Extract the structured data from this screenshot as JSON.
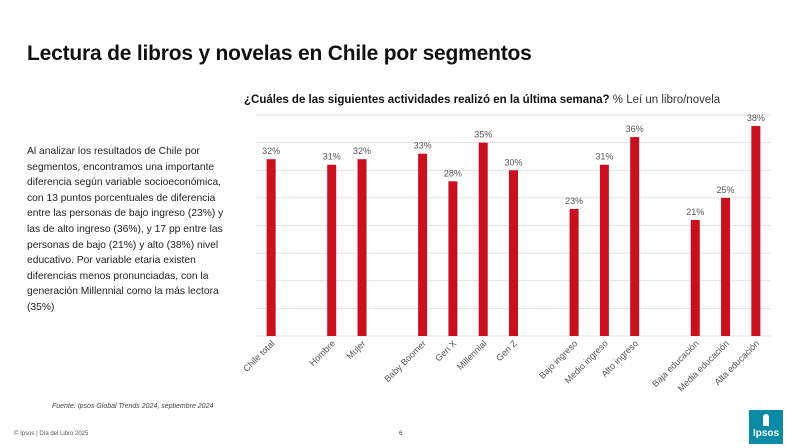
{
  "slide": {
    "title": "Lectura de libros y novelas en Chile por segmentos",
    "body_text": "Al analizar los resultados de Chile por segmentos, encontramos una importante diferencia según variable socioeconómica, con 13 puntos porcentuales de diferencia entre las personas de bajo ingreso (23%) y las de alto ingreso (36%), y 17 pp entre las personas de bajo (21%) y alto (38%) nivel educativo. Por variable etaria existen diferencias menos pronunciadas, con la generación Millennial como la más lectora (35%)",
    "source": "Fuente: Ipsos Global Trends 2024, septiembre 2024",
    "footer": "© Ipsos | Día del Libro 2025",
    "page_number": "6",
    "logo_text": "Ipsos"
  },
  "chart_data": {
    "type": "bar",
    "title": "¿Cuáles de las siguientes actividades realizó en la última semana?",
    "subtitle": "% Leí un libro/novela",
    "categories": [
      "Chile total",
      "Hombre",
      "Mujer",
      "Baby Boomer",
      "Gen X",
      "Millennial",
      "Gen Z",
      "Bajo ingreso",
      "Medio ingreso",
      "Alto ingreso",
      "Baja educación",
      "Media educación",
      "Alta educación"
    ],
    "values": [
      32,
      31,
      32,
      33,
      28,
      35,
      30,
      23,
      31,
      36,
      21,
      25,
      38
    ],
    "value_labels": [
      "32%",
      "31%",
      "32%",
      "33%",
      "28%",
      "35%",
      "30%",
      "23%",
      "31%",
      "36%",
      "21%",
      "25%",
      "38%"
    ],
    "groups": [
      0,
      1,
      1,
      2,
      2,
      2,
      2,
      3,
      3,
      3,
      4,
      4,
      4
    ],
    "ylim": [
      0,
      40
    ],
    "grid": true,
    "bar_color": "#c8101e",
    "grid_color": "#d9d9d9",
    "xlabel": "",
    "ylabel": ""
  }
}
